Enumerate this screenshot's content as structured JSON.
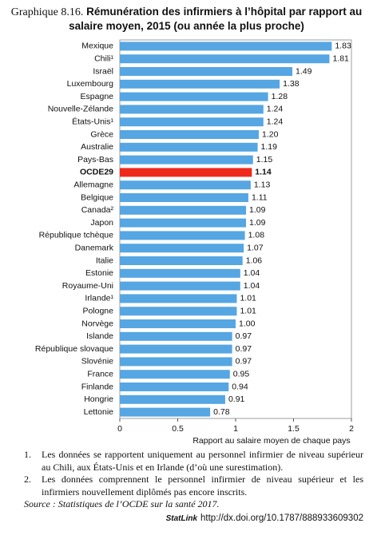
{
  "chart_data": {
    "type": "hbar",
    "title_label": "Graphique 8.16.",
    "title": "Rémunération des infirmiers à l’hôpital par rapport au salaire moyen, 2015 (ou année la plus proche)",
    "x_label": "Rapport au salaire moyen de chaque pays",
    "categories": [
      "Mexique",
      "Chili¹",
      "Israël",
      "Luxembourg",
      "Espagne",
      "Nouvelle-Zélande",
      "États-Unis¹",
      "Grèce",
      "Australie",
      "Pays-Bas",
      "OCDE29",
      "Allemagne",
      "Belgique",
      "Canada²",
      "Japon",
      "République tchèque",
      "Danemark",
      "Italie",
      "Estonie",
      "Royaume-Uni",
      "Irlande¹",
      "Pologne",
      "Norvège",
      "Islande",
      "République slovaque",
      "Slovénie",
      "France",
      "Finlande",
      "Hongrie",
      "Lettonie"
    ],
    "values": [
      1.83,
      1.81,
      1.49,
      1.38,
      1.28,
      1.24,
      1.24,
      1.2,
      1.19,
      1.15,
      1.14,
      1.13,
      1.11,
      1.09,
      1.09,
      1.08,
      1.07,
      1.06,
      1.04,
      1.04,
      1.01,
      1.01,
      1.0,
      0.97,
      0.97,
      0.97,
      0.95,
      0.94,
      0.91,
      0.78
    ],
    "value_labels": [
      "1.83",
      "1.81",
      "1.49",
      "1.38",
      "1.28",
      "1.24",
      "1.24",
      "1.20",
      "1.19",
      "1.15",
      "1.14",
      "1.13",
      "1.11",
      "1.09",
      "1.09",
      "1.08",
      "1.07",
      "1.06",
      "1.04",
      "1.04",
      "1.01",
      "1.01",
      "1.00",
      "0.97",
      "0.97",
      "0.97",
      "0.95",
      "0.94",
      "0.91",
      "0.78"
    ],
    "color": "#55a6e2",
    "highlight_index": 10,
    "highlight_color": "#ee2a1c",
    "xlim": [
      0,
      2
    ],
    "xticks": [
      0,
      0.5,
      1,
      1.5,
      2
    ],
    "grid": false
  },
  "footnotes": [
    {
      "marker": "1.",
      "text": "Les données se rapportent uniquement au personnel infirmier de niveau supérieur au Chili, aux États-Unis et en Irlande (d’où une surestimation)."
    },
    {
      "marker": "2.",
      "text": "Les données comprennent le personnel infirmier de niveau supérieur et les infirmiers nouvellement diplômés pas encore inscrits."
    }
  ],
  "source": {
    "label": "Source :",
    "text": "Statistiques de l’OCDE sur la santé 2017."
  },
  "statlink": {
    "logo": "StatLink",
    "url": "http://dx.doi.org/10.1787/888933609302"
  }
}
